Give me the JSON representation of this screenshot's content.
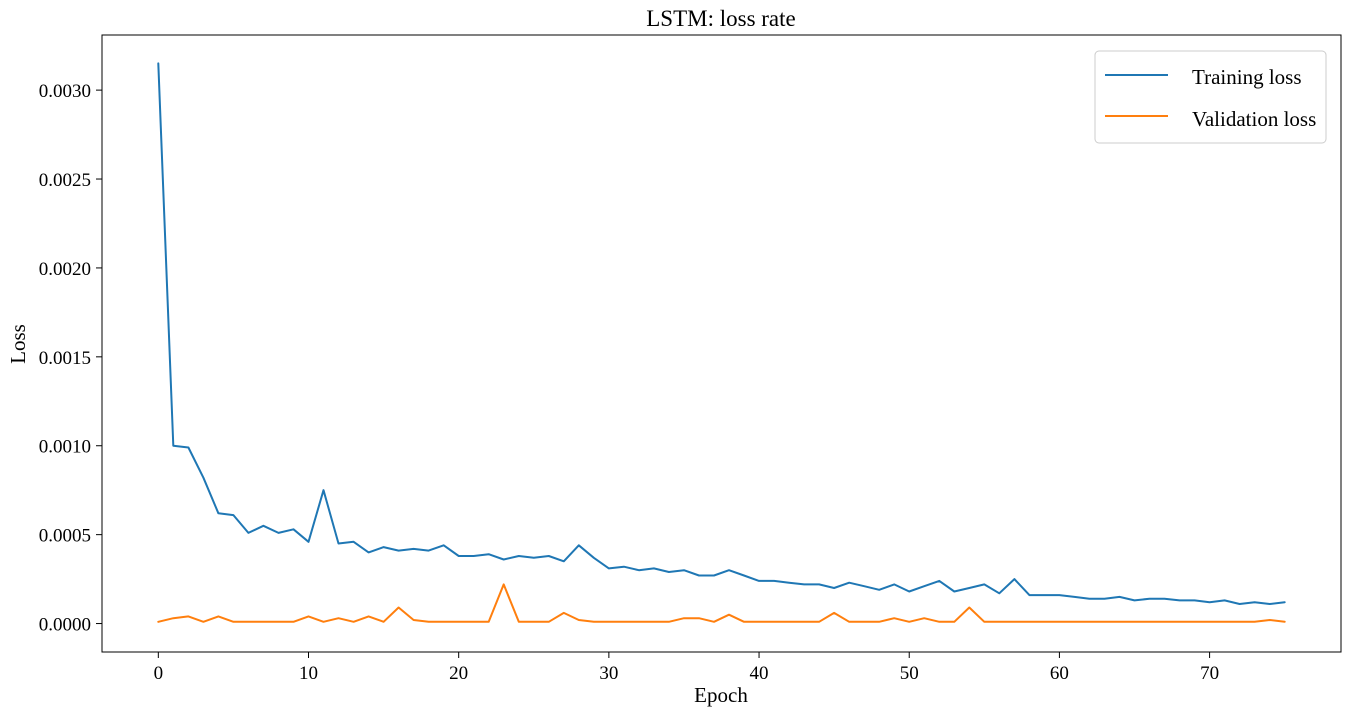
{
  "chart_data": {
    "type": "line",
    "title": "LSTM: loss rate",
    "xlabel": "Epoch",
    "ylabel": "Loss",
    "xlim": [
      -3.75,
      78.75
    ],
    "ylim": [
      -0.00016,
      0.00331
    ],
    "xticks": [
      0,
      10,
      20,
      30,
      40,
      50,
      60,
      70
    ],
    "xtick_labels": [
      "0",
      "10",
      "20",
      "30",
      "40",
      "50",
      "60",
      "70"
    ],
    "yticks": [
      0.0,
      0.0005,
      0.001,
      0.0015,
      0.002,
      0.0025,
      0.003
    ],
    "ytick_labels": [
      "0.0000",
      "0.0005",
      "0.0010",
      "0.0015",
      "0.0020",
      "0.0025",
      "0.0030"
    ],
    "grid": false,
    "legend_position": "top-right",
    "series": [
      {
        "name": "Training loss",
        "color": "#1f77b4",
        "values": [
          0.00315,
          0.001,
          0.00099,
          0.00082,
          0.00062,
          0.00061,
          0.00051,
          0.00055,
          0.00051,
          0.00053,
          0.00046,
          0.00075,
          0.00045,
          0.00046,
          0.0004,
          0.00043,
          0.00041,
          0.00042,
          0.00041,
          0.00044,
          0.00038,
          0.00038,
          0.00039,
          0.00036,
          0.00038,
          0.00037,
          0.00038,
          0.00035,
          0.00044,
          0.00037,
          0.00031,
          0.00032,
          0.0003,
          0.00031,
          0.00029,
          0.0003,
          0.00027,
          0.00027,
          0.0003,
          0.00027,
          0.00024,
          0.00024,
          0.00023,
          0.00022,
          0.00022,
          0.0002,
          0.00023,
          0.00021,
          0.00019,
          0.00022,
          0.00018,
          0.00021,
          0.00024,
          0.00018,
          0.0002,
          0.00022,
          0.00017,
          0.00025,
          0.00016,
          0.00016,
          0.00016,
          0.00015,
          0.00014,
          0.00014,
          0.00015,
          0.00013,
          0.00014,
          0.00014,
          0.00013,
          0.00013,
          0.00012,
          0.00013,
          0.00011,
          0.00012,
          0.00011,
          0.00012
        ]
      },
      {
        "name": "Validation loss",
        "color": "#ff7f0e",
        "values": [
          1e-05,
          3e-05,
          4e-05,
          1e-05,
          4e-05,
          1e-05,
          1e-05,
          1e-05,
          1e-05,
          1e-05,
          4e-05,
          1e-05,
          3e-05,
          1e-05,
          4e-05,
          1e-05,
          9e-05,
          2e-05,
          1e-05,
          1e-05,
          1e-05,
          1e-05,
          1e-05,
          0.00022,
          1e-05,
          1e-05,
          1e-05,
          6e-05,
          2e-05,
          1e-05,
          1e-05,
          1e-05,
          1e-05,
          1e-05,
          1e-05,
          3e-05,
          3e-05,
          1e-05,
          5e-05,
          1e-05,
          1e-05,
          1e-05,
          1e-05,
          1e-05,
          1e-05,
          6e-05,
          1e-05,
          1e-05,
          1e-05,
          3e-05,
          1e-05,
          3e-05,
          1e-05,
          1e-05,
          9e-05,
          1e-05,
          1e-05,
          1e-05,
          1e-05,
          1e-05,
          1e-05,
          1e-05,
          1e-05,
          1e-05,
          1e-05,
          1e-05,
          1e-05,
          1e-05,
          1e-05,
          1e-05,
          1e-05,
          1e-05,
          1e-05,
          1e-05,
          2e-05,
          1e-05
        ]
      }
    ]
  }
}
